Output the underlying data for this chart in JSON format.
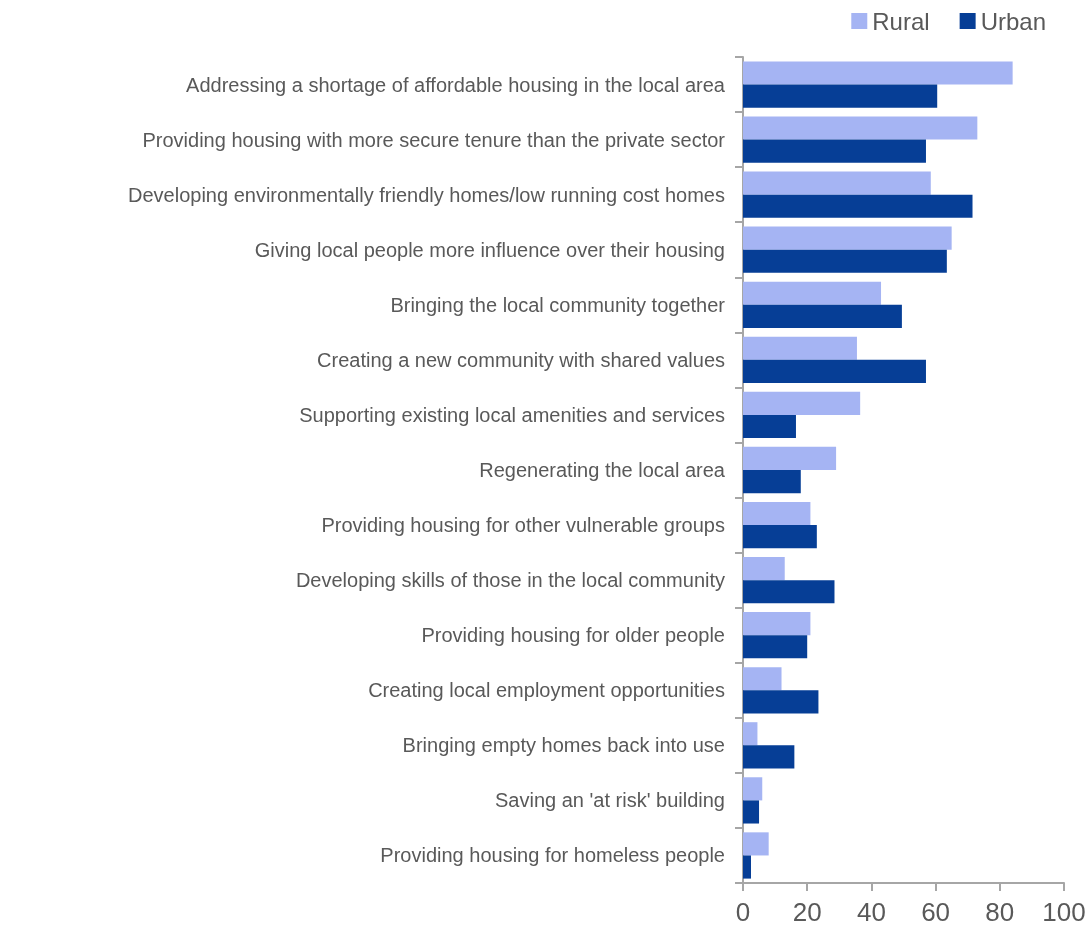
{
  "chart_data": {
    "type": "bar",
    "orientation": "horizontal",
    "categories": [
      "Addressing a shortage of affordable housing in the local area",
      "Providing housing with more secure tenure than the private sector",
      "Developing environmentally friendly homes/low running cost homes",
      "Giving local people more influence over their housing",
      "Bringing the local community together",
      "Creating a new community with shared values",
      "Supporting existing local amenities and services",
      "Regenerating the local area",
      "Providing housing for other vulnerable groups",
      "Developing skills of those in the local community",
      "Providing housing for older people",
      "Creating local employment opportunities",
      "Bringing empty homes back into use",
      "Saving an 'at risk' building",
      "Providing housing for homeless people"
    ],
    "series": [
      {
        "name": "Rural",
        "color": "#a5b4f3",
        "values": [
          84,
          73,
          58.5,
          65,
          43,
          35.5,
          36.5,
          29,
          21,
          13,
          21,
          12,
          4.5,
          6,
          8
        ]
      },
      {
        "name": "Urban",
        "color": "#063e96",
        "values": [
          60.5,
          57,
          71.5,
          63.5,
          49.5,
          57,
          16.5,
          18,
          23,
          28.5,
          20,
          23.5,
          16,
          5,
          2.5
        ]
      }
    ],
    "xlim": [
      0,
      100
    ],
    "xticks": [
      0,
      20,
      40,
      60,
      80,
      100
    ],
    "grid": false,
    "legend": "top right"
  }
}
